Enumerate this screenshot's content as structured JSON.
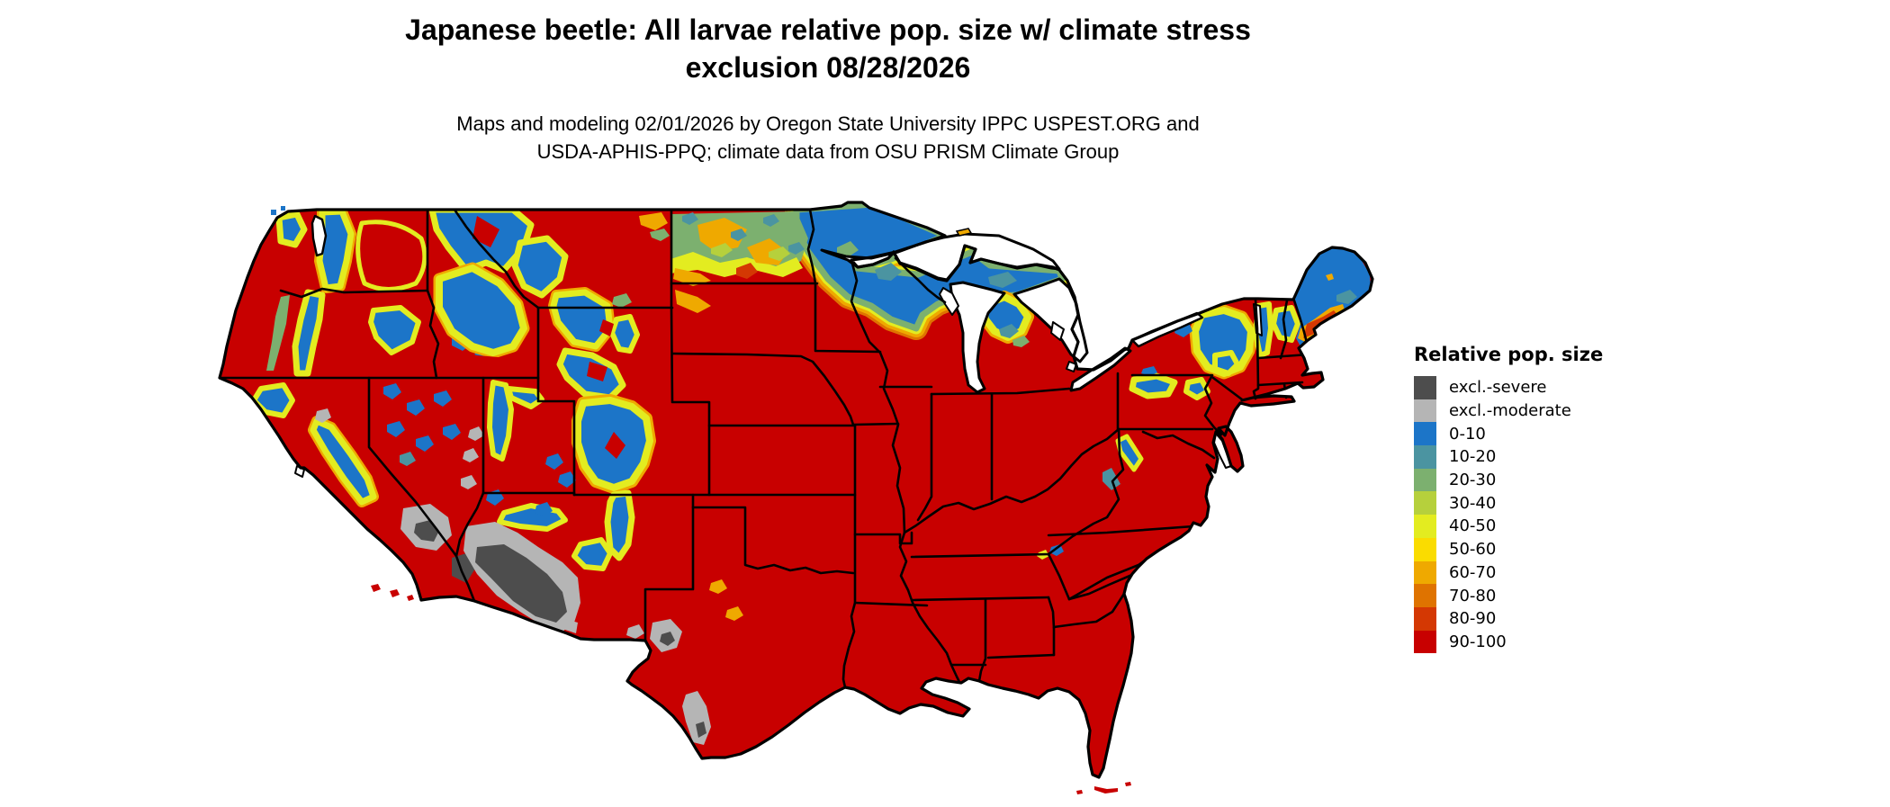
{
  "page": {
    "title_line1": "Japanese beetle: All larvae relative pop. size w/ climate stress",
    "title_line2": "exclusion 08/28/2026",
    "subtitle_line1": "Maps and modeling 02/01/2026 by Oregon State University IPPC USPEST.ORG and",
    "subtitle_line2": "USDA-APHIS-PPQ; climate data from OSU PRISM Climate Group"
  },
  "legend": {
    "title": "Relative pop. size",
    "items": [
      {
        "label": "excl.-severe",
        "color": "#4d4d4d"
      },
      {
        "label": "excl.-moderate",
        "color": "#b5b5b5"
      },
      {
        "label": "0-10",
        "color": "#1c75c8"
      },
      {
        "label": "10-20",
        "color": "#4b94a1"
      },
      {
        "label": "20-30",
        "color": "#7cb06f"
      },
      {
        "label": "30-40",
        "color": "#b6d03c"
      },
      {
        "label": "40-50",
        "color": "#e3ec20"
      },
      {
        "label": "50-60",
        "color": "#fadc00"
      },
      {
        "label": "60-70",
        "color": "#efa900"
      },
      {
        "label": "70-80",
        "color": "#df7300"
      },
      {
        "label": "80-90",
        "color": "#d43803"
      },
      {
        "label": "90-100",
        "color": "#c80000"
      }
    ]
  },
  "map": {
    "description": "Contiguous United States raster risk map",
    "dominant_class": "90-100",
    "exclusion_regions": "Sonoran/Mojave desert (severe), desert fringes and south Texas (moderate)",
    "low_population_regions": "Cascades, Sierra Nevada, Rockies, northern Minnesota/Wisconsin/Michigan, northern Maine, Adirondacks"
  },
  "colors": {
    "blue": "#1c75c8",
    "teal": "#4b94a1",
    "green": "#7cb06f",
    "yellow_green": "#b6d03c",
    "yellow": "#e3ec20",
    "gold": "#fadc00",
    "amber": "#efa900",
    "orange": "#df7300",
    "red_orange": "#d43803",
    "red": "#c80000",
    "excl_severe": "#4d4d4d",
    "excl_moderate": "#b5b5b5",
    "outline": "#000000",
    "water": "#ffffff"
  }
}
